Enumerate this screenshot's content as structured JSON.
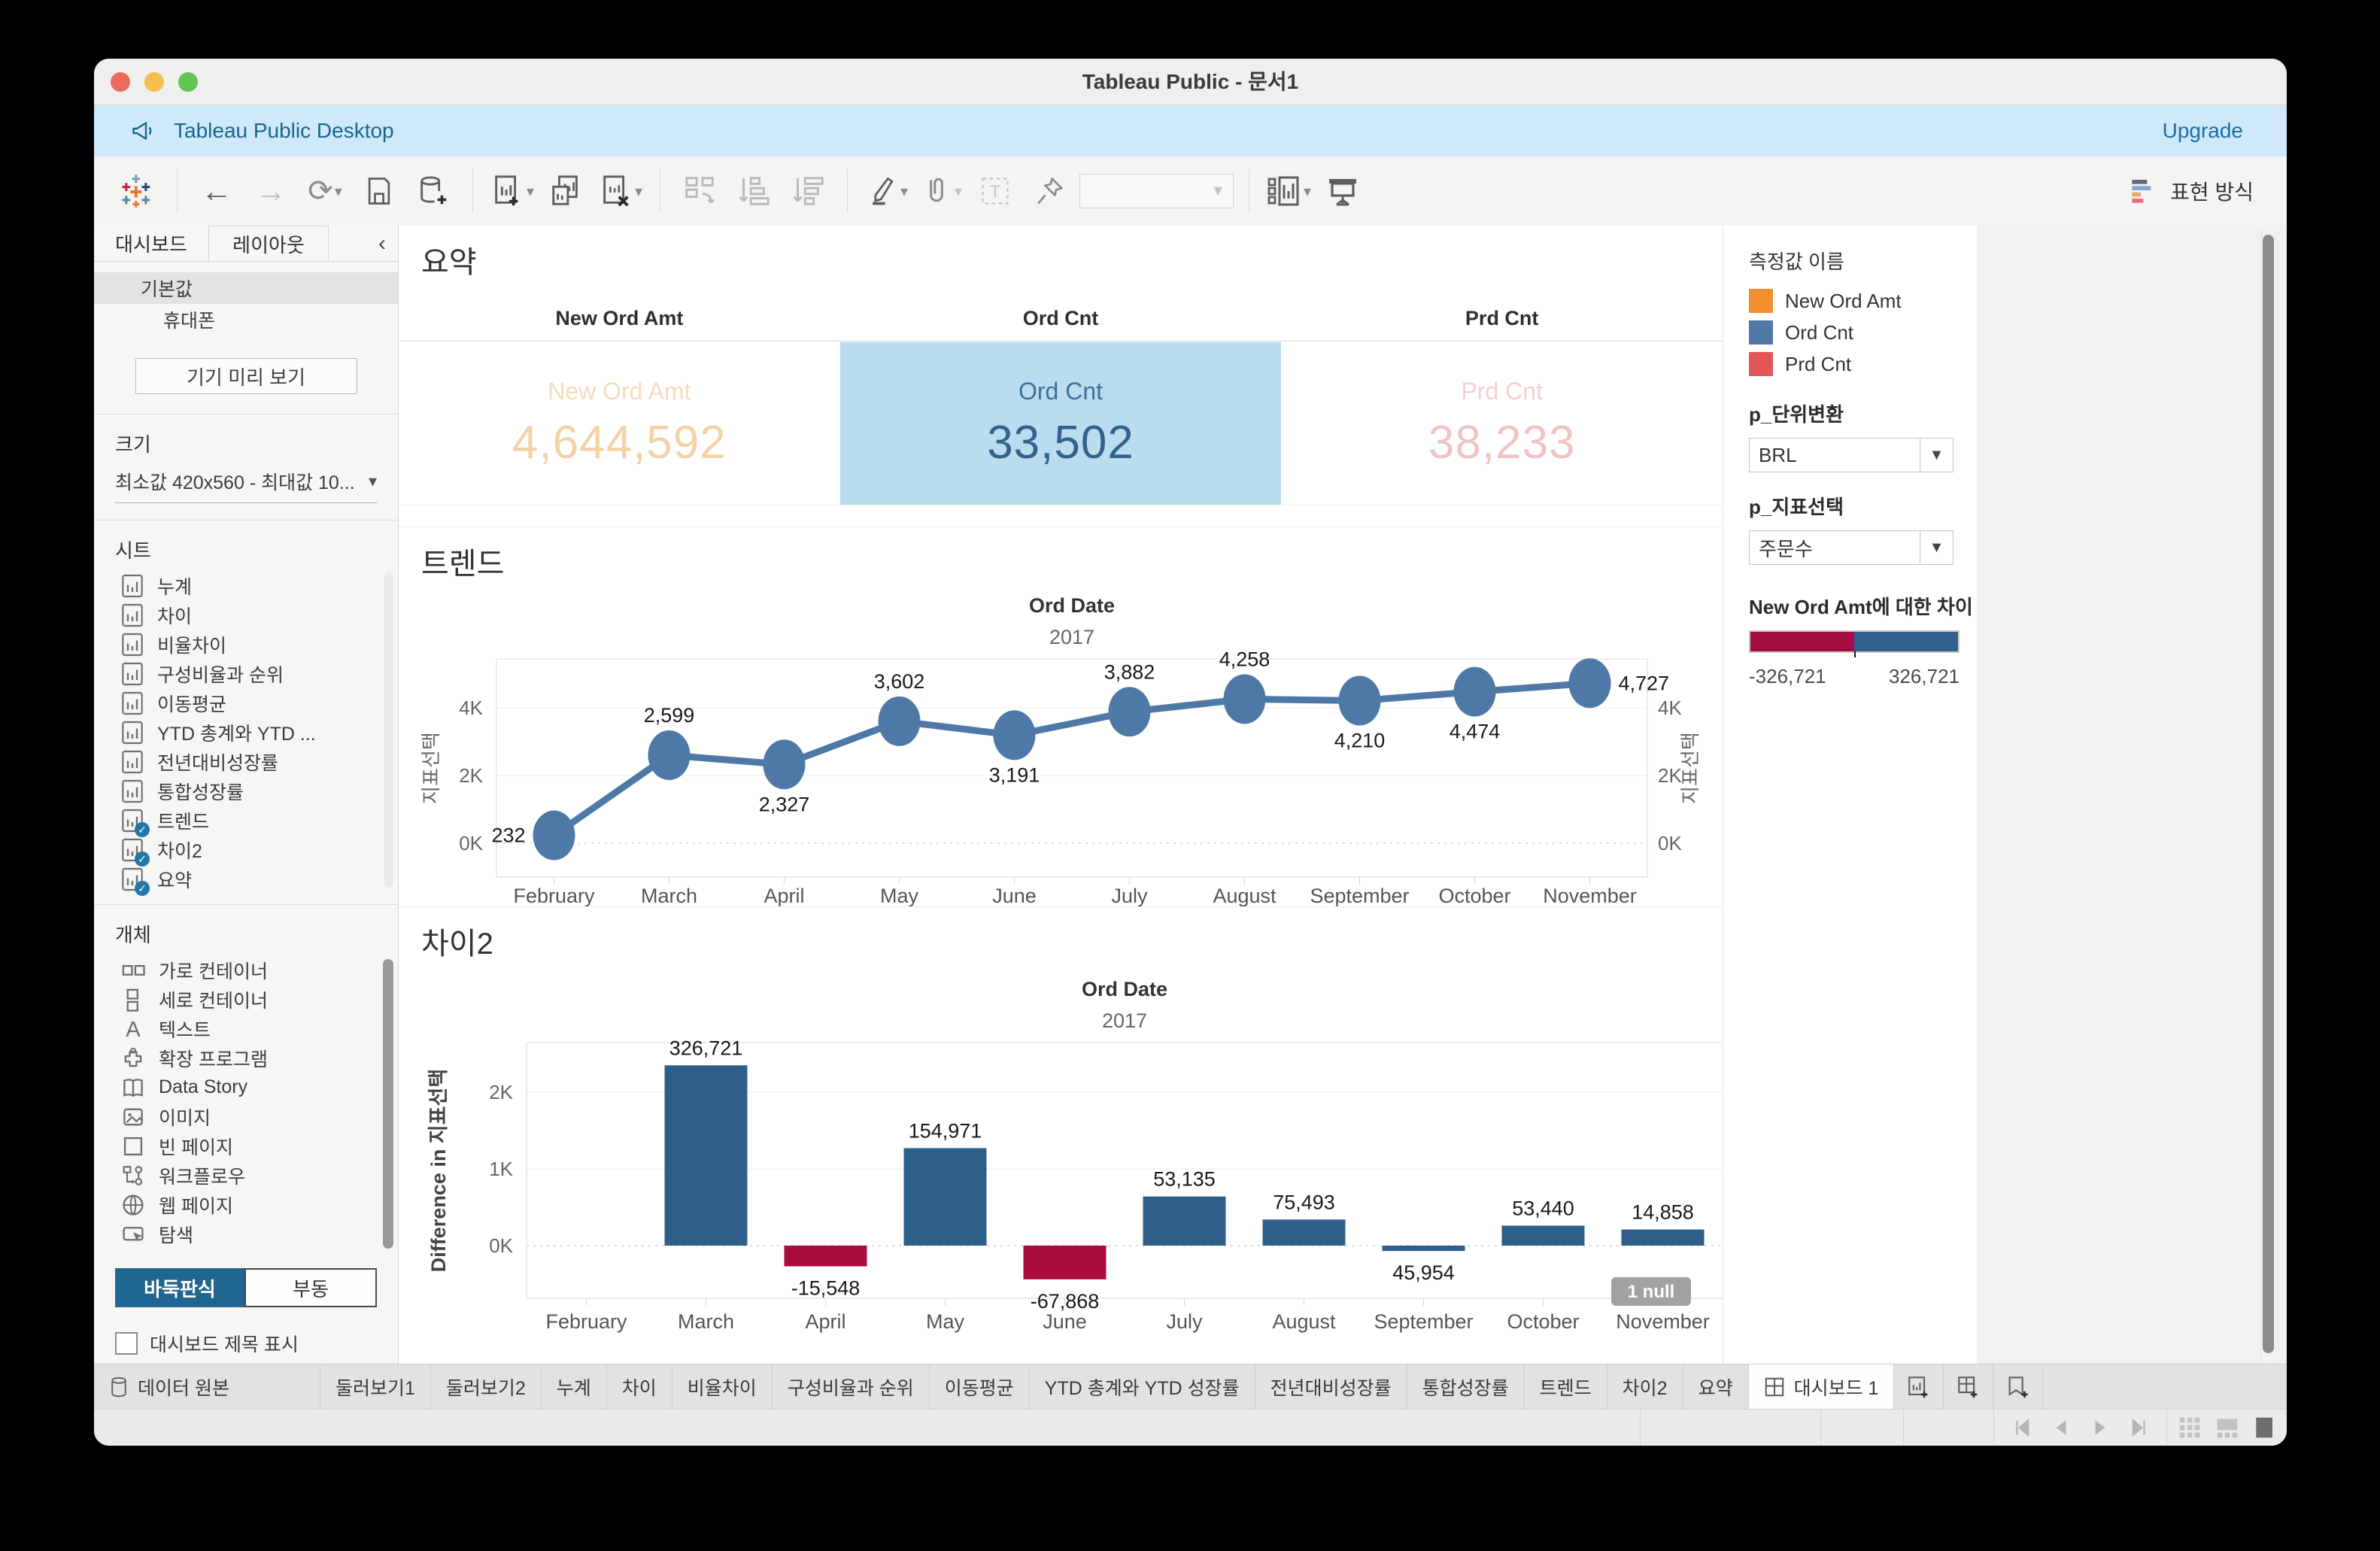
{
  "window": {
    "title": "Tableau Public - 문서1"
  },
  "banner": {
    "app_label": "Tableau Public Desktop",
    "upgrade_label": "Upgrade"
  },
  "toolbar": {
    "show_me_label": "표현 방식"
  },
  "sidebar": {
    "tabs": [
      {
        "label": "대시보드"
      },
      {
        "label": "레이아웃"
      }
    ],
    "size_modes": [
      {
        "label": "기본값"
      },
      {
        "label": "휴대폰"
      }
    ],
    "device_preview_button": "기기 미리 보기",
    "size_section": {
      "label": "크기",
      "value": "최소값 420x560 - 최대값 10..."
    },
    "sheets_section": {
      "label": "시트",
      "items": [
        {
          "name": "누계",
          "used": false
        },
        {
          "name": "차이",
          "used": false
        },
        {
          "name": "비율차이",
          "used": false
        },
        {
          "name": "구성비율과 순위",
          "used": false
        },
        {
          "name": "이동평균",
          "used": false
        },
        {
          "name": "YTD 총계와 YTD ...",
          "used": false
        },
        {
          "name": "전년대비성장률",
          "used": false
        },
        {
          "name": "통합성장률",
          "used": false
        },
        {
          "name": "트렌드",
          "used": true
        },
        {
          "name": "차이2",
          "used": true
        },
        {
          "name": "요약",
          "used": true
        }
      ]
    },
    "objects_section": {
      "label": "개체",
      "items": [
        {
          "label": "가로 컨테이너",
          "icon": "horizontal-container-icon"
        },
        {
          "label": "세로 컨테이너",
          "icon": "vertical-container-icon"
        },
        {
          "label": "텍스트",
          "icon": "text-icon"
        },
        {
          "label": "확장 프로그램",
          "icon": "extension-icon"
        },
        {
          "label": "Data Story",
          "icon": "data-story-icon"
        },
        {
          "label": "이미지",
          "icon": "image-icon"
        },
        {
          "label": "빈 페이지",
          "icon": "blank-page-icon"
        },
        {
          "label": "워크플로우",
          "icon": "workflow-icon"
        },
        {
          "label": "웹 페이지",
          "icon": "web-page-icon"
        },
        {
          "label": "탐색",
          "icon": "navigation-icon"
        }
      ]
    },
    "layout_toggle": [
      {
        "label": "바둑판식",
        "active": true
      },
      {
        "label": "부동",
        "active": false
      }
    ],
    "show_title_checkbox": {
      "label": "대시보드 제목 표시",
      "checked": false
    }
  },
  "dashboard": {
    "summary": {
      "title": "요약",
      "columns": [
        {
          "header": "New Ord Amt",
          "label": "New Ord Amt",
          "value": "4,644,592",
          "state": "dim-orange"
        },
        {
          "header": "Ord Cnt",
          "label": "Ord Cnt",
          "value": "33,502",
          "state": "selected-blue"
        },
        {
          "header": "Prd Cnt",
          "label": "Prd Cnt",
          "value": "38,233",
          "state": "dim-red"
        }
      ]
    },
    "trend_title": "트렌드",
    "diff_title": "차이2"
  },
  "params": {
    "measure_names": {
      "label": "측정값 이름",
      "items": [
        {
          "label": "New Ord Amt",
          "color": "#f28e2b"
        },
        {
          "label": "Ord Cnt",
          "color": "#4e79a7"
        },
        {
          "label": "Prd Cnt",
          "color": "#e15759"
        }
      ]
    },
    "unit_param": {
      "label": "p_단위변환",
      "value": "BRL"
    },
    "metric_param": {
      "label": "p_지표선택",
      "value": "주문수"
    },
    "diff_legend": {
      "label": "New Ord Amt에 대한 차이",
      "min": "-326,721",
      "max": "326,721",
      "left_color": "#a50e42",
      "right_color": "#31618f"
    }
  },
  "chart_data": [
    {
      "type": "line",
      "title": "트렌드",
      "header": "Ord Date",
      "subheader": "2017",
      "x": [
        "February",
        "March",
        "April",
        "May",
        "June",
        "July",
        "August",
        "September",
        "October",
        "November"
      ],
      "series": [
        {
          "name": "지표선택",
          "values": [
            232,
            2599,
            2327,
            3602,
            3191,
            3882,
            4258,
            4210,
            4474,
            4727
          ]
        }
      ],
      "labels": [
        "232",
        "2,599",
        "2,327",
        "3,602",
        "3,191",
        "3,882",
        "4,258",
        "4,210",
        "4,474",
        "4,727"
      ],
      "label_pos": [
        "left",
        "above",
        "below",
        "above",
        "below",
        "above",
        "above",
        "below",
        "below",
        "right"
      ],
      "ylabel": "지표선택",
      "yticks": [
        0,
        2000,
        4000
      ],
      "ytick_labels": [
        "0K",
        "2K",
        "4K"
      ],
      "ylim": [
        0,
        5400
      ],
      "line_color": "#4e79a7",
      "grid": true,
      "legend_position": "none"
    },
    {
      "type": "bar",
      "title": "차이2",
      "header": "Ord Date",
      "subheader": "2017",
      "x": [
        "February",
        "March",
        "April",
        "May",
        "June",
        "July",
        "August",
        "September",
        "October",
        "November"
      ],
      "values": [
        null,
        326721,
        -15548,
        154971,
        -67868,
        53135,
        75493,
        45954,
        53440,
        14858
      ],
      "labels": [
        "",
        "326,721",
        "-15,548",
        "154,971",
        "-67,868",
        "53,135",
        "75,493",
        "45,954",
        "53,440",
        "14,858"
      ],
      "display_axis_k": [
        null,
        2.35,
        -0.27,
        1.27,
        -0.44,
        0.64,
        0.34,
        -0.07,
        0.26,
        0.21
      ],
      "bar_colors": [
        null,
        "#2e5f8a",
        "#ab0c3d",
        "#2e5f8a",
        "#ab0c3d",
        "#2e5f8a",
        "#2e5f8a",
        "#2e5f8a",
        "#2e5f8a",
        "#2e5f8a"
      ],
      "ylabel": "Difference in 지표선택",
      "yticks": [
        0,
        1,
        2
      ],
      "ytick_labels": [
        "0K",
        "1K",
        "2K"
      ],
      "annotation": "1 null",
      "grid": true,
      "legend_position": "none"
    }
  ],
  "tabbar": {
    "tabs": [
      {
        "label": "데이터 원본",
        "icon": "data-source-icon",
        "active": false
      },
      {
        "label": "둘러보기1",
        "active": false
      },
      {
        "label": "둘러보기2",
        "active": false
      },
      {
        "label": "누계",
        "active": false
      },
      {
        "label": "차이",
        "active": false
      },
      {
        "label": "비율차이",
        "active": false
      },
      {
        "label": "구성비율과 순위",
        "active": false
      },
      {
        "label": "이동평균",
        "active": false
      },
      {
        "label": "YTD 총계와 YTD 성장률",
        "active": false
      },
      {
        "label": "전년대비성장률",
        "active": false
      },
      {
        "label": "통합성장률",
        "active": false
      },
      {
        "label": "트렌드",
        "active": false
      },
      {
        "label": "차이2",
        "active": false
      },
      {
        "label": "요약",
        "active": false
      },
      {
        "label": "대시보드 1",
        "icon": "dashboard-icon",
        "active": true
      }
    ]
  }
}
